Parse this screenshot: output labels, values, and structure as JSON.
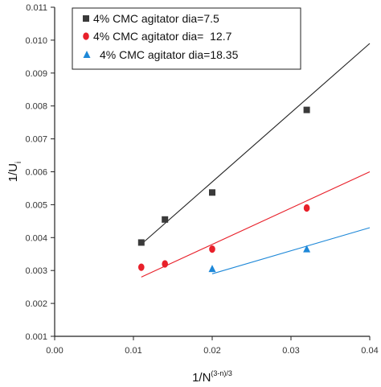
{
  "chart_data": {
    "type": "scatter",
    "xlabel": {
      "base": "1/N",
      "superscript": "(3-n)/3"
    },
    "ylabel": {
      "base": "1/U",
      "subscript": "i"
    },
    "xlim": [
      0.0,
      0.04
    ],
    "ylim": [
      0.001,
      0.011
    ],
    "x_ticks": [
      0.0,
      0.01,
      0.02,
      0.03,
      0.04
    ],
    "x_tick_labels": [
      "0.00",
      "0.01",
      "0.02",
      "0.03",
      "0.04"
    ],
    "y_ticks": [
      0.001,
      0.002,
      0.003,
      0.004,
      0.005,
      0.006,
      0.007,
      0.008,
      0.009,
      0.01,
      0.011
    ],
    "y_tick_labels": [
      "0.001",
      "0.002",
      "0.003",
      "0.004",
      "0.005",
      "0.006",
      "0.007",
      "0.008",
      "0.009",
      "0.010",
      "0.011"
    ],
    "grid": false,
    "legend_position": "top-left",
    "series": [
      {
        "name": "4% CMC agitator dia=7.5",
        "marker": "square",
        "color": "#3a3a3a",
        "line_color": "#222222",
        "x": [
          0.011,
          0.014,
          0.02,
          0.032
        ],
        "y": [
          0.00385,
          0.00455,
          0.00537,
          0.00788
        ],
        "fit_line": {
          "x": [
            0.011,
            0.04
          ],
          "y": [
            0.0038,
            0.0099
          ]
        }
      },
      {
        "name": "4% CMC agitator dia=  12.7",
        "marker": "circle",
        "color": "#e8202a",
        "line_color": "#e8202a",
        "x": [
          0.011,
          0.014,
          0.02,
          0.032
        ],
        "y": [
          0.0031,
          0.0032,
          0.00365,
          0.0049
        ],
        "fit_line": {
          "x": [
            0.011,
            0.04
          ],
          "y": [
            0.0028,
            0.006
          ]
        }
      },
      {
        "name": "4% CMC agitator dia=18.35",
        "marker": "triangle",
        "color": "#1e88d8",
        "line_color": "#1e88d8",
        "x": [
          0.02,
          0.032
        ],
        "y": [
          0.00305,
          0.00365
        ],
        "fit_line": {
          "x": [
            0.02,
            0.04
          ],
          "y": [
            0.0029,
            0.0043
          ]
        }
      }
    ]
  }
}
